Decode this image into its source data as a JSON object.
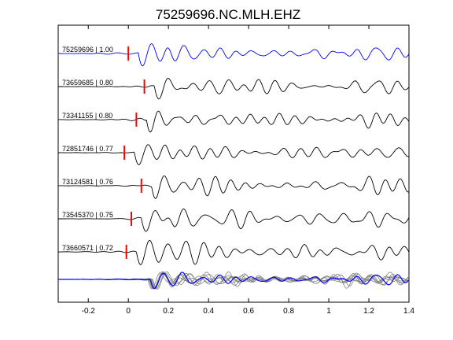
{
  "chart_data": {
    "type": "line",
    "title": "75259696.NC.MLH.EHZ",
    "xlabel": "",
    "ylabel": "",
    "xlim": [
      -0.35,
      1.4
    ],
    "xticks": [
      -0.2,
      0,
      0.2,
      0.4,
      0.6,
      0.8,
      1,
      1.2,
      1.4
    ],
    "xtick_labels": [
      "-0.2",
      "0",
      "0.2",
      "0.4",
      "0.6",
      "0.8",
      "1",
      "1.2",
      "1.4"
    ],
    "grid": false,
    "colors": {
      "master": "#0000ff",
      "trace": "#000000",
      "stack": "#808080",
      "pick": "#ff0000"
    },
    "series": [
      {
        "name": "75259696 | 1.00",
        "pick_time": 0.0,
        "color": "#0000ff"
      },
      {
        "name": "73659685 | 0.80",
        "pick_time": 0.08,
        "color": "#000000"
      },
      {
        "name": "73341155 | 0.80",
        "pick_time": 0.04,
        "color": "#000000"
      },
      {
        "name": "72851746 | 0.77",
        "pick_time": -0.02,
        "color": "#000000"
      },
      {
        "name": "73124581 | 0.76",
        "pick_time": 0.065,
        "color": "#000000"
      },
      {
        "name": "73545370 | 0.75",
        "pick_time": 0.015,
        "color": "#000000"
      },
      {
        "name": "73660571 | 0.72",
        "pick_time": -0.01,
        "color": "#000000"
      }
    ]
  }
}
